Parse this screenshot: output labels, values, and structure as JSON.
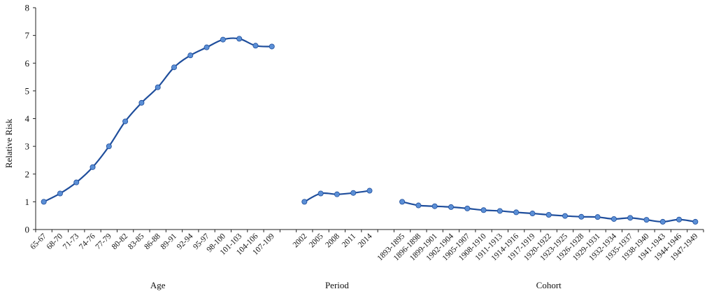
{
  "chart_data": {
    "type": "line",
    "ylabel": "Relative Risk",
    "ylim": [
      0,
      8
    ],
    "yticks": [
      0,
      1,
      2,
      3,
      4,
      5,
      6,
      7,
      8
    ],
    "grid": false,
    "legend": "none",
    "line_color": "#1f4e9c",
    "marker_color": "#5b8fd6",
    "groups": [
      {
        "label": "Age",
        "categories": [
          "65-67",
          "68-70",
          "71-73",
          "74-76",
          "77-79",
          "80-82",
          "83-85",
          "86-88",
          "89-91",
          "92-94",
          "95-97",
          "98-100",
          "101-103",
          "104-106",
          "107-109"
        ],
        "values": [
          1.0,
          1.3,
          1.7,
          2.25,
          3.0,
          3.9,
          4.57,
          5.13,
          5.85,
          6.28,
          6.57,
          6.85,
          6.88,
          6.63,
          6.6
        ]
      },
      {
        "label": "Period",
        "categories": [
          "2002",
          "2005",
          "2008",
          "2011",
          "2014"
        ],
        "values": [
          1.0,
          1.3,
          1.27,
          1.32,
          1.4
        ]
      },
      {
        "label": "Cohort",
        "categories": [
          "1893-1895",
          "1896-1898",
          "1899-1901",
          "1902-1904",
          "1905-1907",
          "1908-1910",
          "1911-1913",
          "1914-1916",
          "1917-1919",
          "1920-1922",
          "1923-1925",
          "1926-1928",
          "1929-1931",
          "1932-1934",
          "1935-1937",
          "1938-1940",
          "1941-1943",
          "1944-1946",
          "1947-1949"
        ],
        "values": [
          1.0,
          0.87,
          0.84,
          0.81,
          0.76,
          0.7,
          0.67,
          0.62,
          0.58,
          0.53,
          0.49,
          0.46,
          0.45,
          0.38,
          0.42,
          0.35,
          0.28,
          0.36,
          0.28
        ]
      }
    ]
  }
}
